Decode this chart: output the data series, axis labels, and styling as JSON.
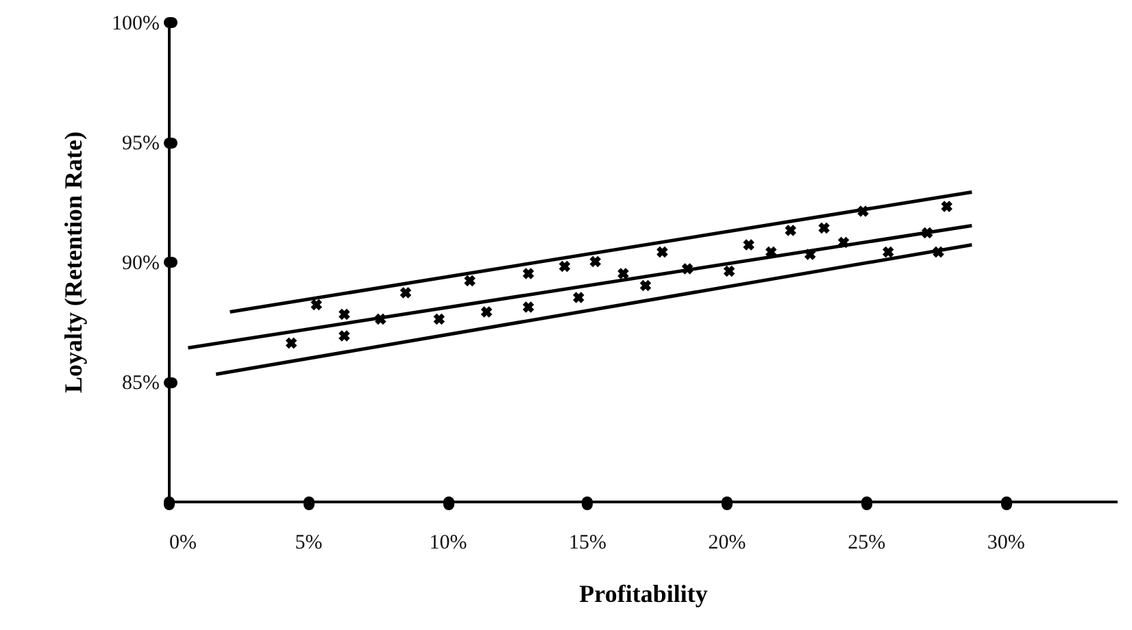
{
  "chart_data": {
    "type": "scatter",
    "xlabel": "Profitability",
    "ylabel": "Loyalty (Retention Rate)",
    "xlim": [
      0,
      34
    ],
    "ylim": [
      80,
      100
    ],
    "xticks": [
      {
        "value": 0,
        "label": "0%"
      },
      {
        "value": 5,
        "label": "5%"
      },
      {
        "value": 10,
        "label": "10%"
      },
      {
        "value": 15,
        "label": "15%"
      },
      {
        "value": 20,
        "label": "20%"
      },
      {
        "value": 25,
        "label": "25%"
      },
      {
        "value": 30,
        "label": "30%"
      }
    ],
    "yticks": [
      {
        "value": 85,
        "label": "85%"
      },
      {
        "value": 90,
        "label": "90%"
      },
      {
        "value": 95,
        "label": "95%"
      },
      {
        "value": 100,
        "label": "100%"
      }
    ],
    "grid": false,
    "series": [
      {
        "color": "#000000",
        "marker": "cross",
        "x": [
          4.4,
          5.3,
          6.3,
          6.3,
          7.6,
          8.5,
          9.7,
          10.8,
          11.4,
          12.9,
          12.9,
          14.2,
          14.7,
          15.3,
          16.3,
          17.1,
          17.7,
          18.6,
          20.1,
          20.8,
          21.6,
          22.3,
          23.0,
          23.5,
          24.2,
          24.9,
          25.8,
          27.2,
          27.6,
          27.9
        ],
        "values": [
          86.6,
          88.2,
          87.8,
          86.9,
          87.6,
          88.7,
          87.6,
          89.2,
          87.9,
          89.5,
          88.1,
          89.8,
          88.5,
          90.0,
          89.5,
          89.0,
          90.4,
          89.7,
          89.6,
          90.7,
          90.4,
          91.3,
          90.3,
          91.4,
          90.8,
          92.1,
          90.4,
          91.2,
          90.4,
          92.3
        ]
      },
      {
        "type": "line",
        "color": "#000000",
        "line_style": "solid",
        "x": [
          2.2,
          28.8
        ],
        "values": [
          87.9,
          92.9
        ]
      },
      {
        "type": "line",
        "color": "#000000",
        "line_style": "solid",
        "x": [
          0.7,
          28.8
        ],
        "values": [
          86.4,
          91.5
        ]
      },
      {
        "type": "line",
        "color": "#000000",
        "line_style": "solid",
        "x": [
          1.7,
          28.8
        ],
        "values": [
          85.3,
          90.7
        ]
      }
    ]
  }
}
